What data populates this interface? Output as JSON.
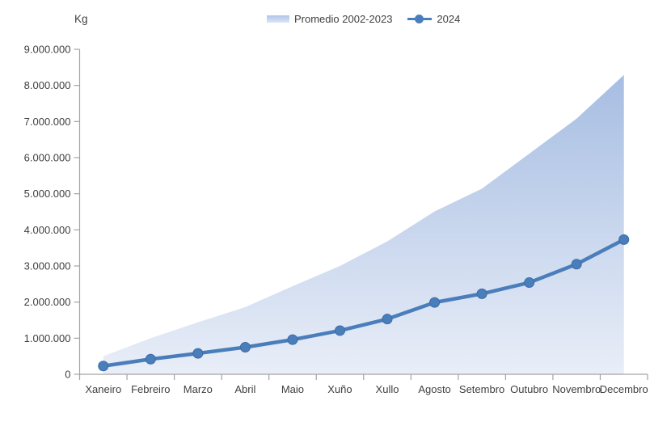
{
  "unit_label": "Kg",
  "colors": {
    "line": "#4a7ebb",
    "marker": "#4a7ebb",
    "marker_edge": "#3a6ba5",
    "area_top": "#a6bde2",
    "area_bottom": "#e9eef8",
    "axis": "#a3a3a3",
    "text": "#3f3f3f"
  },
  "chart_data": {
    "type": "area+line",
    "title": "",
    "ylabel": "Kg",
    "xlabel": "",
    "categories": [
      "Xaneiro",
      "Febreiro",
      "Marzo",
      "Abril",
      "Maio",
      "Xuño",
      "Xullo",
      "Agosto",
      "Setembro",
      "Outubro",
      "Novembro",
      "Decembro"
    ],
    "series": [
      {
        "name": "Promedio 2002-2023",
        "type": "area",
        "values": [
          500000,
          1000000,
          1440000,
          1860000,
          2440000,
          3000000,
          3680000,
          4510000,
          5140000,
          6110000,
          7080000,
          8290000
        ]
      },
      {
        "name": "2024",
        "type": "line",
        "values": [
          230000,
          420000,
          580000,
          750000,
          960000,
          1210000,
          1530000,
          1990000,
          2230000,
          2540000,
          3050000,
          3730000
        ]
      }
    ],
    "ylim": [
      0,
      9000000
    ],
    "ytick_step": 1000000,
    "y_tick_labels": [
      "0",
      "1.000.000",
      "2.000.000",
      "3.000.000",
      "4.000.000",
      "5.000.000",
      "6.000.000",
      "7.000.000",
      "8.000.000",
      "9.000.000"
    ],
    "grid": false,
    "legend_position": "top-center"
  }
}
